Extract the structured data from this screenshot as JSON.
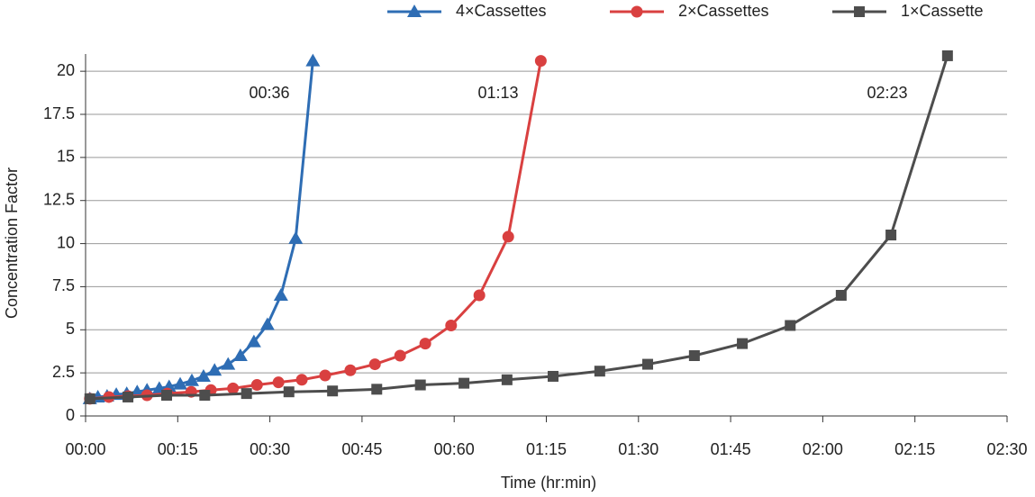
{
  "chart_data": {
    "type": "line",
    "x_label": "Time (hr:min)",
    "y_label": "Concentration Factor",
    "xlim": [
      0,
      150
    ],
    "ylim": [
      0,
      21
    ],
    "xticks": [
      {
        "value": 0,
        "label": "00:00"
      },
      {
        "value": 15,
        "label": "00:15"
      },
      {
        "value": 30,
        "label": "00:30"
      },
      {
        "value": 45,
        "label": "00:45"
      },
      {
        "value": 60,
        "label": "00:60"
      },
      {
        "value": 75,
        "label": "01:15"
      },
      {
        "value": 90,
        "label": "01:30"
      },
      {
        "value": 105,
        "label": "01:45"
      },
      {
        "value": 120,
        "label": "02:00"
      },
      {
        "value": 135,
        "label": "02:15"
      },
      {
        "value": 150,
        "label": "02:30"
      }
    ],
    "yticks": [
      0,
      2.5,
      5,
      7.5,
      10,
      12.5,
      15,
      17.5,
      20
    ],
    "grid": true,
    "legend": "top-right",
    "annotations": [
      "00:36",
      "01:13",
      "02:23"
    ],
    "series": [
      {
        "name": "4×Cassettes",
        "color": "#2e6db4",
        "marker": "triangle",
        "x": [
          0.7,
          2,
          3.5,
          5,
          6.7,
          8.4,
          10,
          12,
          13.6,
          15.4,
          17.3,
          19.2,
          21,
          23.2,
          25.2,
          27.4,
          29.6,
          31.8,
          34.2,
          37
        ],
        "values": [
          1.0,
          1.1,
          1.15,
          1.25,
          1.3,
          1.4,
          1.5,
          1.6,
          1.7,
          1.85,
          2.05,
          2.3,
          2.65,
          3.0,
          3.5,
          4.3,
          5.3,
          7.0,
          10.3,
          20.6
        ]
      },
      {
        "name": "2×Cassettes",
        "color": "#d94040",
        "marker": "circle",
        "x": [
          0.7,
          3.8,
          6.9,
          10,
          13.3,
          17.2,
          20.4,
          24,
          27.9,
          31.4,
          35.2,
          39,
          43.1,
          47.1,
          51.2,
          55.3,
          59.5,
          64.1,
          68.8,
          74.1
        ],
        "values": [
          1.0,
          1.1,
          1.15,
          1.2,
          1.3,
          1.4,
          1.5,
          1.6,
          1.8,
          1.95,
          2.1,
          2.35,
          2.65,
          3.0,
          3.5,
          4.2,
          5.25,
          7.0,
          10.4,
          20.6
        ]
      },
      {
        "name": "1×Cassette",
        "color": "#4d4d4d",
        "marker": "square",
        "x": [
          0.7,
          6.9,
          13.2,
          19.4,
          26.2,
          33.1,
          40.2,
          47.4,
          54.5,
          61.6,
          68.6,
          76.1,
          83.7,
          91.5,
          99.1,
          106.9,
          114.7,
          123,
          131.1,
          140.3
        ],
        "values": [
          1.0,
          1.1,
          1.2,
          1.2,
          1.3,
          1.4,
          1.45,
          1.55,
          1.8,
          1.9,
          2.1,
          2.3,
          2.6,
          3.0,
          3.5,
          4.2,
          5.25,
          7.0,
          10.5,
          20.9
        ]
      }
    ]
  }
}
